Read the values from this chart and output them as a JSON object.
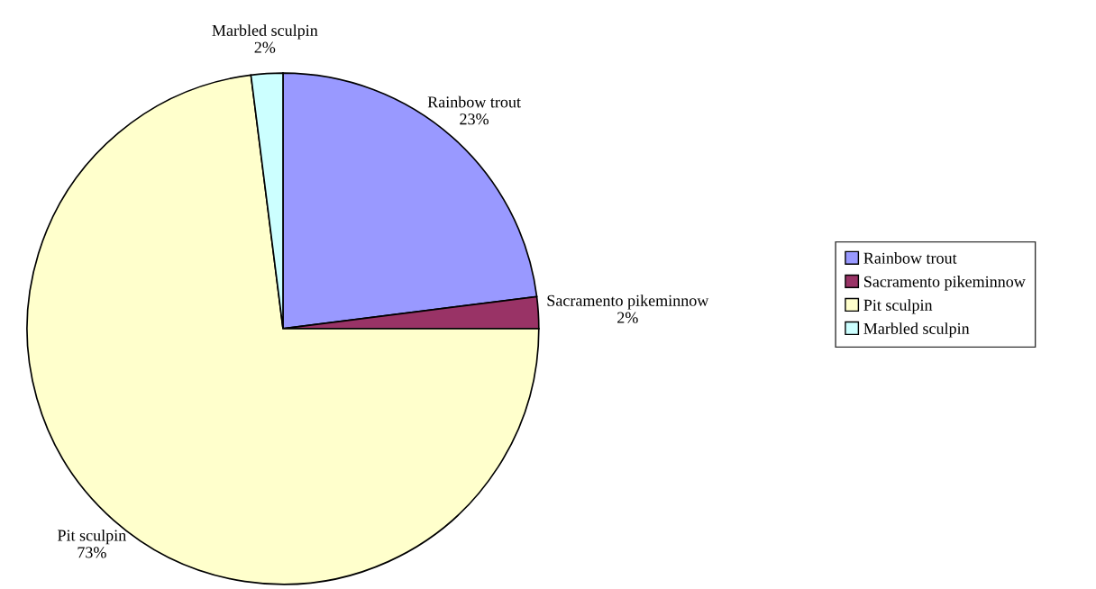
{
  "chart_data": {
    "type": "pie",
    "categories": [
      "Rainbow trout",
      "Sacramento pikeminnow",
      "Pit sculpin",
      "Marbled sculpin"
    ],
    "values": [
      23,
      2,
      73,
      2
    ],
    "value_labels": [
      "23%",
      "2%",
      "73%",
      "2%"
    ],
    "colors": [
      "#9999ff",
      "#993366",
      "#ffffcc",
      "#ccffff"
    ],
    "legend": "right"
  }
}
